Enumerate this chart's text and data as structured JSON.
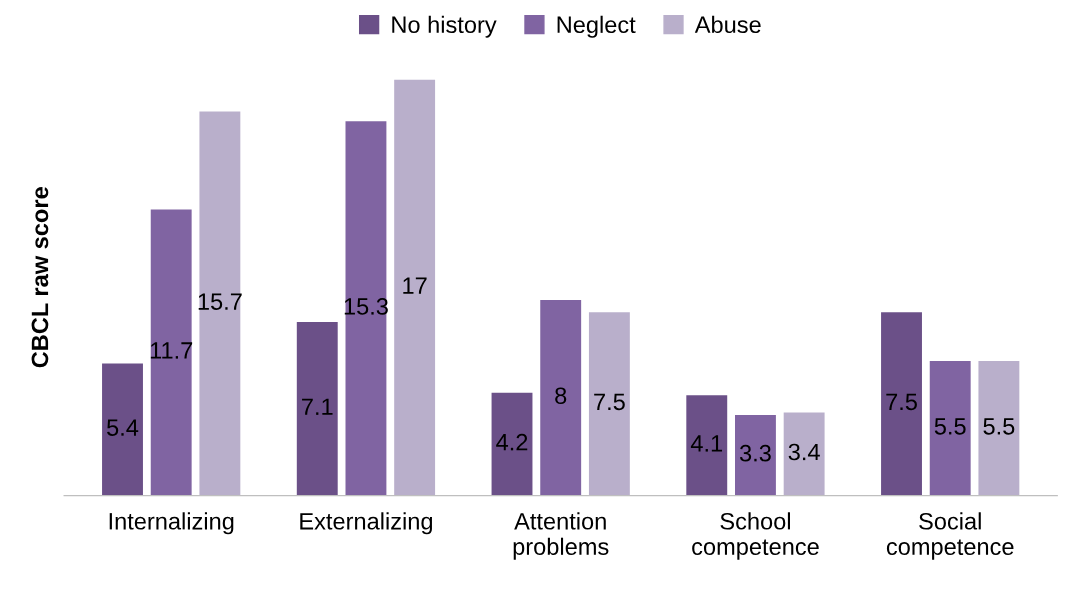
{
  "chart_data": {
    "type": "bar",
    "ylabel": "CBCL raw score",
    "categories": [
      "Internalizing",
      "Externalizing",
      "Attention\nproblems",
      "School\ncompetence",
      "Social\ncompetence"
    ],
    "series": [
      {
        "name": "No history",
        "color": "#6b5088",
        "values": [
          5.4,
          7.1,
          4.2,
          4.1,
          7.5
        ]
      },
      {
        "name": "Neglect",
        "color": "#8064a2",
        "values": [
          11.7,
          15.3,
          8,
          3.3,
          5.5
        ]
      },
      {
        "name": "Abuse",
        "color": "#b9afcb",
        "values": [
          15.7,
          17,
          7.5,
          3.4,
          5.5
        ]
      }
    ],
    "data_labels": true,
    "legend": "top",
    "grid": false,
    "tick_labels": "x"
  }
}
